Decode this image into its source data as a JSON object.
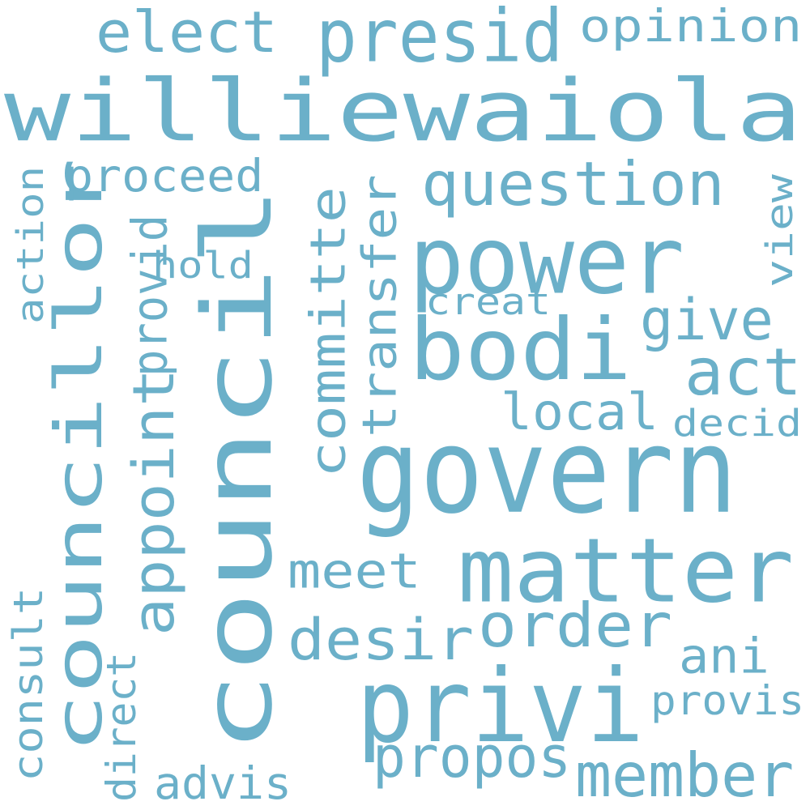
{
  "color": "#6bb0c9",
  "words": [
    {
      "id": "council",
      "text": "council"
    },
    {
      "id": "williewaiola",
      "text": "williewaiola"
    },
    {
      "id": "councillor",
      "text": "councillor"
    },
    {
      "id": "privi",
      "text": "privi"
    },
    {
      "id": "govern",
      "text": "govern"
    },
    {
      "id": "matter",
      "text": "matter"
    },
    {
      "id": "power",
      "text": "power"
    },
    {
      "id": "bodi",
      "text": "bodi"
    },
    {
      "id": "presid",
      "text": "presid"
    },
    {
      "id": "question",
      "text": "question"
    },
    {
      "id": "appoint",
      "text": "appoint"
    },
    {
      "id": "committe",
      "text": "committe"
    },
    {
      "id": "transfer",
      "text": "transfer"
    },
    {
      "id": "order",
      "text": "order"
    },
    {
      "id": "member",
      "text": "member"
    },
    {
      "id": "propos",
      "text": "propos"
    },
    {
      "id": "elect",
      "text": "elect"
    },
    {
      "id": "act",
      "text": "act"
    },
    {
      "id": "desir",
      "text": "desir"
    },
    {
      "id": "opinion",
      "text": "opinion"
    },
    {
      "id": "meet",
      "text": "meet"
    },
    {
      "id": "local",
      "text": "local"
    },
    {
      "id": "ani",
      "text": "ani"
    },
    {
      "id": "give",
      "text": "give"
    },
    {
      "id": "proceed",
      "text": "proceed"
    },
    {
      "id": "provid",
      "text": "provid"
    },
    {
      "id": "provis",
      "text": "provis"
    },
    {
      "id": "consult",
      "text": "consult"
    },
    {
      "id": "advis",
      "text": "advis"
    },
    {
      "id": "action",
      "text": "action"
    },
    {
      "id": "direct",
      "text": "direct"
    },
    {
      "id": "decid",
      "text": "decid"
    },
    {
      "id": "creat",
      "text": "creat"
    },
    {
      "id": "view",
      "text": "view"
    },
    {
      "id": "hold",
      "text": "hold"
    }
  ]
}
